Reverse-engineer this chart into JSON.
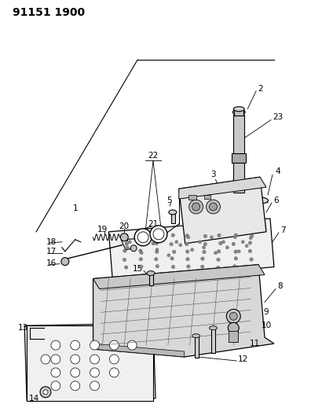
{
  "title": "91151 1900",
  "bg_color": "#ffffff",
  "line_color": "#000000",
  "title_fontsize": 10,
  "label_fontsize": 7.5,
  "fig_width": 3.96,
  "fig_height": 5.33,
  "dpi": 100
}
